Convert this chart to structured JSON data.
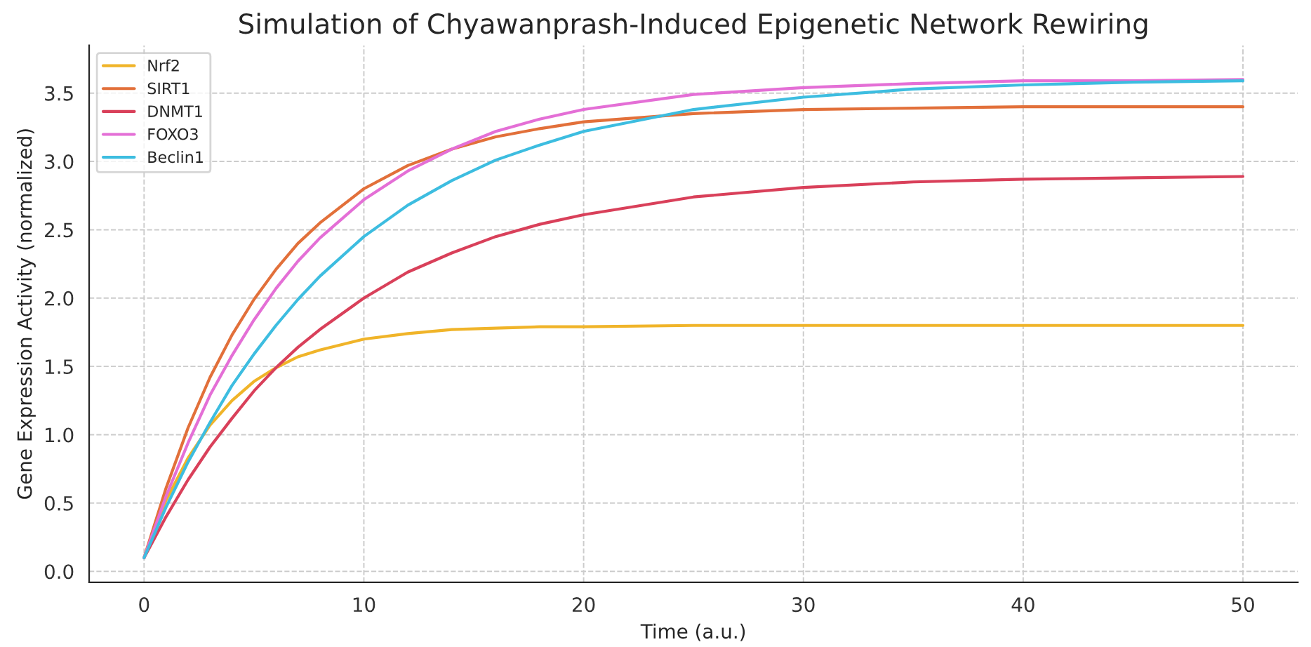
{
  "chart_data": {
    "type": "line",
    "title": "Simulation of Chyawanprash-Induced Epigenetic Network Rewiring",
    "xlabel": "Time (a.u.)",
    "ylabel": "Gene Expression Activity (normalized)",
    "x": [
      0,
      1,
      2,
      3,
      4,
      5,
      6,
      7,
      8,
      10,
      12,
      14,
      16,
      18,
      20,
      25,
      30,
      35,
      40,
      45,
      50
    ],
    "series": [
      {
        "name": "Nrf2",
        "color": "#f0b429",
        "values": [
          0.1,
          0.52,
          0.83,
          1.07,
          1.25,
          1.39,
          1.49,
          1.57,
          1.62,
          1.7,
          1.74,
          1.77,
          1.78,
          1.79,
          1.79,
          1.8,
          1.8,
          1.8,
          1.8,
          1.8,
          1.8
        ]
      },
      {
        "name": "SIRT1",
        "color": "#e2703a",
        "values": [
          0.1,
          0.61,
          1.05,
          1.42,
          1.73,
          1.99,
          2.21,
          2.4,
          2.55,
          2.8,
          2.97,
          3.09,
          3.18,
          3.24,
          3.29,
          3.35,
          3.38,
          3.39,
          3.4,
          3.4,
          3.4
        ]
      },
      {
        "name": "DNMT1",
        "color": "#d9405a",
        "values": [
          0.1,
          0.4,
          0.67,
          0.91,
          1.12,
          1.32,
          1.49,
          1.64,
          1.77,
          2.0,
          2.19,
          2.33,
          2.45,
          2.54,
          2.61,
          2.74,
          2.81,
          2.85,
          2.87,
          2.88,
          2.89
        ]
      },
      {
        "name": "FOXO3",
        "color": "#e46fd6",
        "values": [
          0.1,
          0.55,
          0.94,
          1.29,
          1.58,
          1.84,
          2.07,
          2.27,
          2.44,
          2.72,
          2.93,
          3.09,
          3.22,
          3.31,
          3.38,
          3.49,
          3.54,
          3.57,
          3.59,
          3.59,
          3.6
        ]
      },
      {
        "name": "Beclin1",
        "color": "#3dbde0",
        "values": [
          0.1,
          0.47,
          0.8,
          1.09,
          1.36,
          1.59,
          1.8,
          1.99,
          2.16,
          2.45,
          2.68,
          2.86,
          3.01,
          3.12,
          3.22,
          3.38,
          3.47,
          3.53,
          3.56,
          3.58,
          3.59
        ]
      }
    ],
    "xlim": [
      -2.5,
      52.5
    ],
    "xticks": [
      0,
      10,
      20,
      30,
      40,
      50
    ],
    "ylim": [
      -0.08,
      3.85
    ],
    "yticks": [
      {
        "value": 0,
        "label": "0.0"
      },
      {
        "value": 0.5,
        "label": "0.5"
      },
      {
        "value": 1,
        "label": "1.0"
      },
      {
        "value": 1.5,
        "label": "1.5"
      },
      {
        "value": 2,
        "label": "2.0"
      },
      {
        "value": 2.5,
        "label": "2.5"
      },
      {
        "value": 3,
        "label": "3.0"
      },
      {
        "value": 3.5,
        "label": "3.5"
      }
    ],
    "grid": true,
    "legend": "top left",
    "marker": "none",
    "line_style": "solid"
  }
}
